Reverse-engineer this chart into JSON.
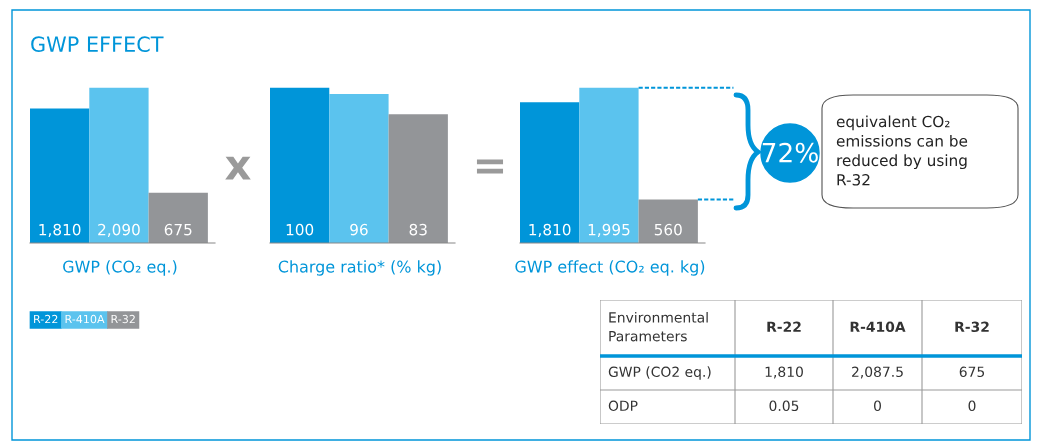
{
  "chart_data": [
    {
      "type": "bar",
      "title": "GWP EFFECT",
      "xlabel": "GWP (CO₂ eq.)",
      "categories": [
        null
      ],
      "legend": "bottom left",
      "series": [
        {
          "name": "R-22",
          "color": "#0095d9",
          "values": [
            1810
          ],
          "value_labels": [
            "1,810"
          ]
        },
        {
          "name": "R-410A",
          "color": "#5bc3ee",
          "values": [
            2090
          ],
          "value_labels": [
            "2,090"
          ]
        },
        {
          "name": "R-32",
          "color": "#939598",
          "values": [
            675
          ],
          "value_labels": [
            "675"
          ]
        }
      ]
    },
    {
      "type": "bar",
      "xlabel": "Charge ratio* (% kg)",
      "categories": [
        null
      ],
      "annotations": [
        "x"
      ],
      "series": [
        {
          "color": "#0095d9",
          "values": [
            100
          ],
          "value_labels": [
            "100"
          ]
        },
        {
          "color": "#5bc3ee",
          "values": [
            96
          ],
          "value_labels": [
            "96"
          ]
        },
        {
          "color": "#939598",
          "values": [
            83
          ],
          "value_labels": [
            "83"
          ]
        }
      ]
    },
    {
      "type": "bar",
      "xlabel": "GWP effect (CO₂ eq. kg)",
      "categories": [
        null
      ],
      "annotations": [
        "=",
        "72%",
        "equivalent CO₂ emissions can be reduced by using R-32"
      ],
      "series": [
        {
          "color": "#0095d9",
          "values": [
            1810
          ],
          "value_labels": [
            "1,810"
          ]
        },
        {
          "color": "#5bc3ee",
          "values": [
            1995
          ],
          "value_labels": [
            "1,995"
          ]
        },
        {
          "color": "#939598",
          "values": [
            560
          ],
          "value_labels": [
            "560"
          ]
        }
      ]
    },
    {
      "type": "other",
      "categories": [
        "Environmental Parameters",
        "R-22",
        "R-410A",
        "R-32"
      ],
      "y_categories": [
        "GWP (CO2 eq.)",
        "ODP"
      ],
      "cell_labels": [
        [
          "1,810",
          "2,087.5",
          "675"
        ],
        [
          "0.05",
          "0",
          "0"
        ]
      ]
    }
  ]
}
